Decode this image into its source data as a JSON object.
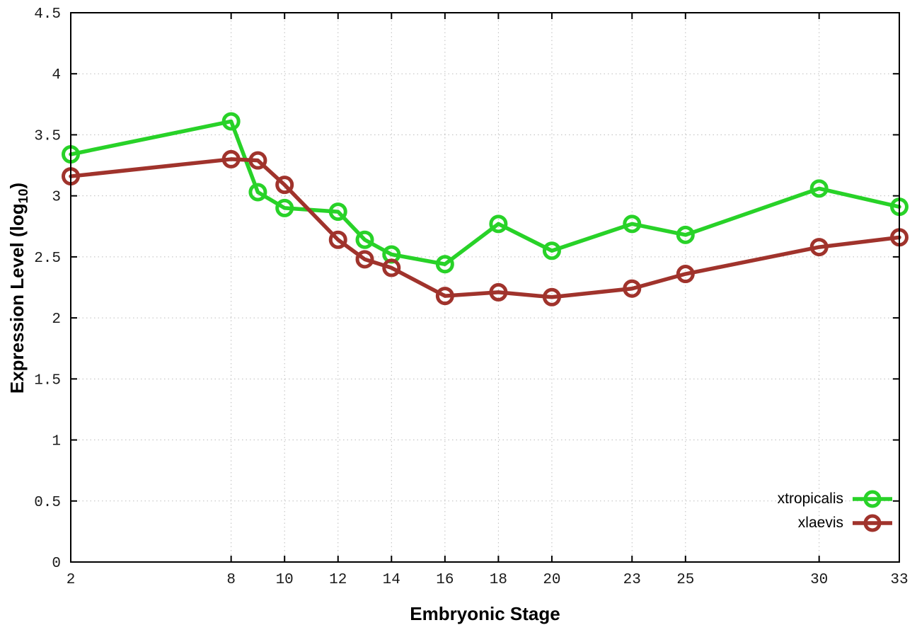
{
  "page": {
    "background": "#ffffff",
    "border_color": "#000000",
    "grid_color": "#bdbdbd"
  },
  "chart_data": {
    "type": "line",
    "title": "",
    "xlabel": "Embryonic Stage",
    "ylabel": "Expression Level (log10)",
    "ylabel_parts": {
      "pre": "Expression Level (log",
      "sub": "10",
      "post": ")"
    },
    "xlim": [
      2,
      33
    ],
    "ylim": [
      0,
      4.5
    ],
    "xticks": [
      2,
      8,
      10,
      12,
      14,
      16,
      18,
      20,
      23,
      25,
      30,
      33
    ],
    "yticks": [
      0,
      0.5,
      1,
      1.5,
      2,
      2.5,
      3,
      3.5,
      4,
      4.5
    ],
    "grid": true,
    "legend_position": "bottom-right-inside",
    "marker": "open-circle",
    "x": [
      2,
      8,
      9,
      10,
      12,
      13,
      14,
      16,
      18,
      20,
      23,
      25,
      30,
      33
    ],
    "series": [
      {
        "name": "xtropicalis",
        "color": "#28d228",
        "values": [
          3.34,
          3.61,
          3.03,
          2.9,
          2.87,
          2.64,
          2.52,
          2.44,
          2.77,
          2.55,
          2.77,
          2.68,
          3.06,
          2.91
        ]
      },
      {
        "name": "xlaevis",
        "color": "#a0332c",
        "values": [
          3.16,
          3.3,
          3.29,
          3.09,
          2.64,
          2.48,
          2.41,
          2.18,
          2.21,
          2.17,
          2.24,
          2.36,
          2.58,
          2.66
        ]
      }
    ]
  }
}
